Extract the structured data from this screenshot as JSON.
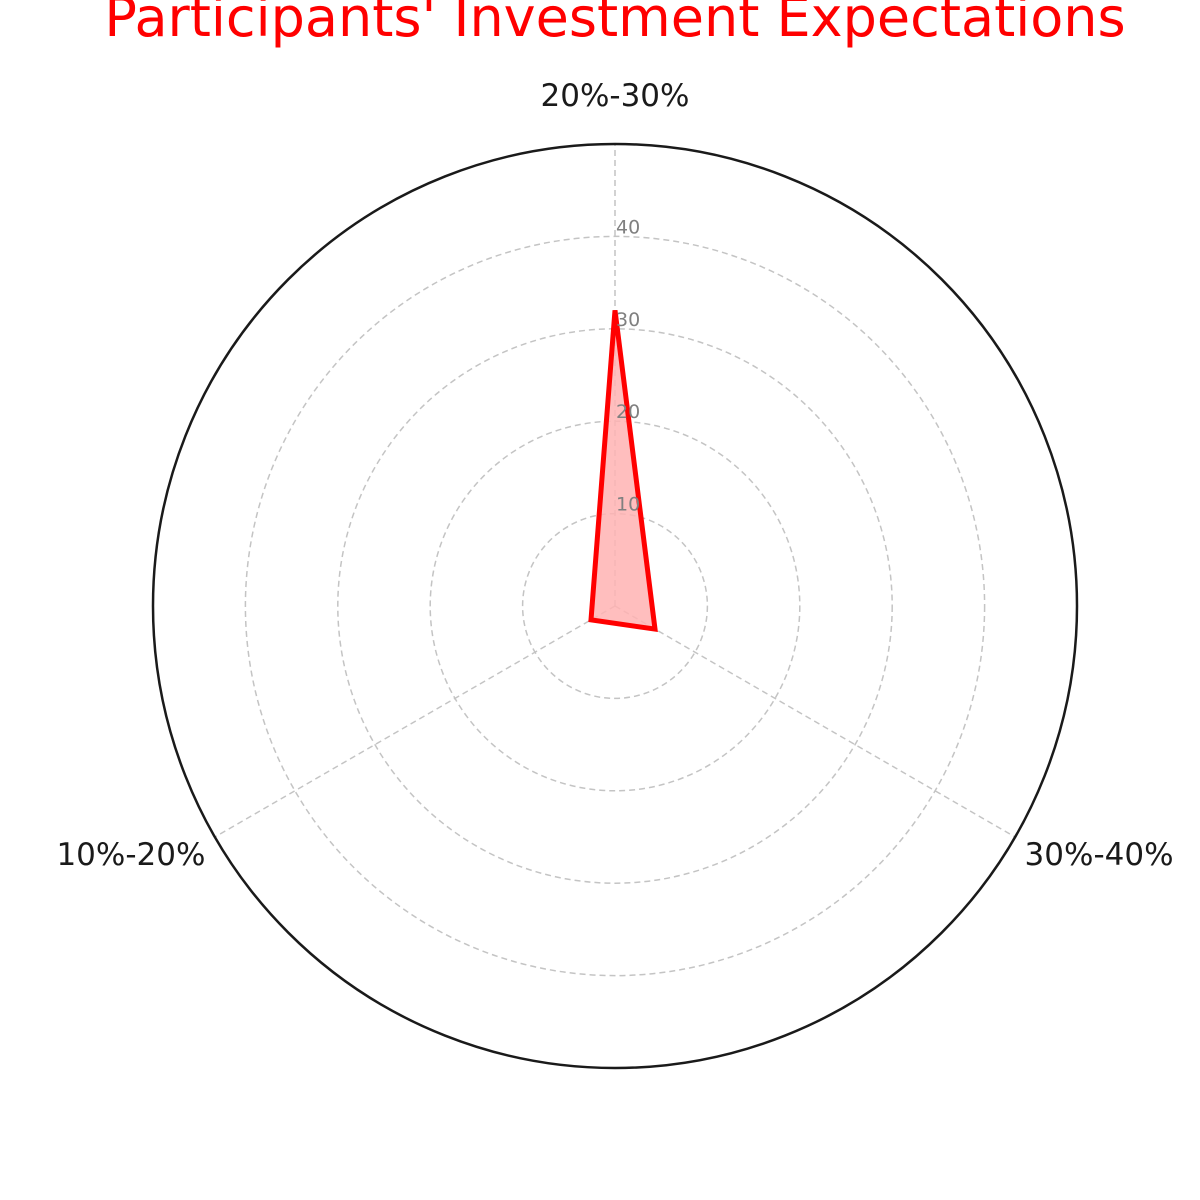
{
  "chart_data": {
    "type": "radar",
    "title": "Participants' Investment Expectations",
    "categories": [
      "20%-30%",
      "30%-40%",
      "10%-20%"
    ],
    "series": [
      {
        "values": [
          32,
          5,
          3
        ]
      }
    ],
    "rlim": [
      0,
      50
    ],
    "r_ticks": [
      "10",
      "20",
      "30",
      "40"
    ],
    "grid": true,
    "line_color": "#ff0000",
    "fill_color": "#ffb3b3",
    "title_color": "#ff0000"
  }
}
